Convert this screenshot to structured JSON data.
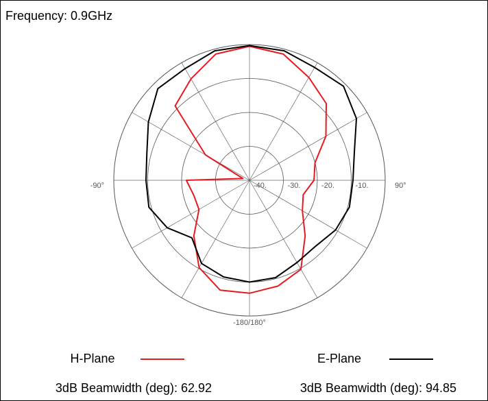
{
  "chart_data": {
    "type": "polar",
    "title": "Frequency: 0.9GHz",
    "theta": [
      -180,
      -165,
      -150,
      -135,
      -120,
      -105,
      -90,
      -75,
      -60,
      -45,
      -30,
      -15,
      0,
      15,
      30,
      45,
      60,
      75,
      90,
      105,
      120,
      135,
      150,
      165
    ],
    "series": [
      {
        "name": "H-Plane",
        "color": "#e8191e",
        "beamwidth": "3dB Beamwidth (deg): 62.92",
        "values": [
          -6.7,
          -6.5,
          -10.3,
          -16.8,
          -22.8,
          -23,
          -21.4,
          -38,
          -25,
          -9,
          -5.5,
          -1.5,
          -0.5,
          -1.5,
          -5,
          -8,
          -14,
          -20,
          -21,
          -23.6,
          -22,
          -16.8,
          -9.7,
          -7.7
        ]
      },
      {
        "name": "E-Plane",
        "color": "#000000",
        "beamwidth": "3dB Beamwidth (deg): 94.85",
        "values": [
          -10,
          -10.5,
          -11.7,
          -16,
          -12,
          -9.3,
          -9.5,
          -8.7,
          -5.6,
          -1.8,
          -2,
          -0.5,
          -0.3,
          -0.5,
          -1.6,
          -0.8,
          -3.6,
          -8,
          -9.5,
          -9.5,
          -10.7,
          -12.5,
          -12,
          -10.3
        ]
      }
    ],
    "rlim": [
      -40,
      0
    ],
    "rticks": [
      {
        "value": -40,
        "label": "-40."
      },
      {
        "value": -30,
        "label": "-30."
      },
      {
        "value": -20,
        "label": "-20."
      },
      {
        "value": -10,
        "label": "-10."
      }
    ],
    "thetagrid": [
      -180,
      -150,
      -120,
      -90,
      -60,
      -30,
      0,
      30,
      60,
      90,
      120,
      150
    ],
    "theta_labels": [
      {
        "value": -90,
        "label": "-90°"
      },
      {
        "value": 90,
        "label": "90°"
      },
      {
        "value": 180,
        "label": "-180/180°"
      }
    ]
  }
}
